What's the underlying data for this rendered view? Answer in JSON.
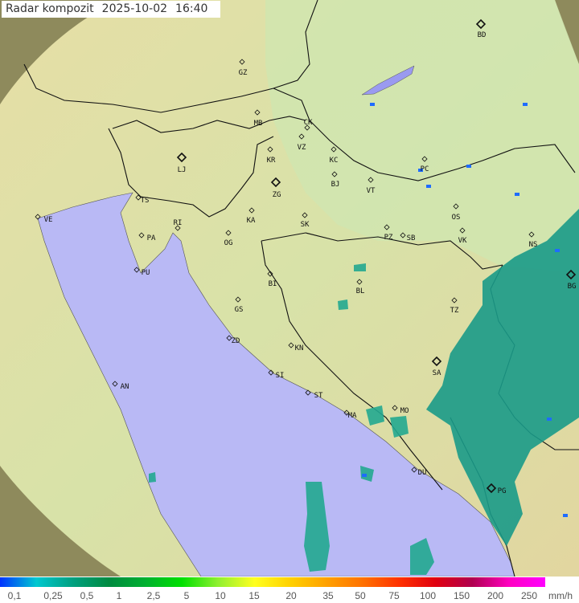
{
  "header": {
    "title": "Radar kompozit",
    "date": "2025-10-02",
    "time": "16:40"
  },
  "legend": {
    "labels": [
      "0,1",
      "0,25",
      "0,5",
      "1",
      "2,5",
      "5",
      "10",
      "15",
      "20",
      "35",
      "50",
      "75",
      "100",
      "150",
      "200",
      "250"
    ],
    "unit": "mm/h",
    "colors": [
      "#0033ff",
      "#00c8d0",
      "#00a080",
      "#008a40",
      "#00b030",
      "#00e000",
      "#90f030",
      "#ffff20",
      "#ffd000",
      "#ffa000",
      "#ff7000",
      "#ff3000",
      "#e00010",
      "#b00050",
      "#ff00c0",
      "#ff00ff"
    ]
  },
  "map": {
    "sea_color": "#b9b9f5",
    "echo_color": "#1a9a88",
    "cities": [
      {
        "code": "GZ",
        "capital": false
      },
      {
        "code": "BD",
        "capital": true
      },
      {
        "code": "MB",
        "capital": false
      },
      {
        "code": "CK",
        "capital": false
      },
      {
        "code": "VZ",
        "capital": false
      },
      {
        "code": "KR",
        "capital": false
      },
      {
        "code": "KC",
        "capital": false
      },
      {
        "code": "LJ",
        "capital": true
      },
      {
        "code": "ZG",
        "capital": true
      },
      {
        "code": "BJ",
        "capital": false
      },
      {
        "code": "VT",
        "capital": false
      },
      {
        "code": "PC",
        "capital": false
      },
      {
        "code": "TS",
        "capital": false
      },
      {
        "code": "VE",
        "capital": false
      },
      {
        "code": "RI",
        "capital": false
      },
      {
        "code": "KA",
        "capital": false
      },
      {
        "code": "SK",
        "capital": false
      },
      {
        "code": "OS",
        "capital": false
      },
      {
        "code": "PA",
        "capital": false
      },
      {
        "code": "OG",
        "capital": false
      },
      {
        "code": "PZ",
        "capital": false
      },
      {
        "code": "SB",
        "capital": false
      },
      {
        "code": "VK",
        "capital": false
      },
      {
        "code": "NS",
        "capital": false
      },
      {
        "code": "PU",
        "capital": false
      },
      {
        "code": "BL",
        "capital": false
      },
      {
        "code": "BG",
        "capital": true
      },
      {
        "code": "BI",
        "capital": false
      },
      {
        "code": "GS",
        "capital": false
      },
      {
        "code": "TZ",
        "capital": false
      },
      {
        "code": "ZD",
        "capital": false
      },
      {
        "code": "KN",
        "capital": false
      },
      {
        "code": "SA",
        "capital": true
      },
      {
        "code": "SI",
        "capital": false
      },
      {
        "code": "AN",
        "capital": false
      },
      {
        "code": "ST",
        "capital": false
      },
      {
        "code": "MO",
        "capital": false
      },
      {
        "code": "MA",
        "capital": false
      },
      {
        "code": "DU",
        "capital": false
      },
      {
        "code": "PG",
        "capital": true
      }
    ]
  }
}
